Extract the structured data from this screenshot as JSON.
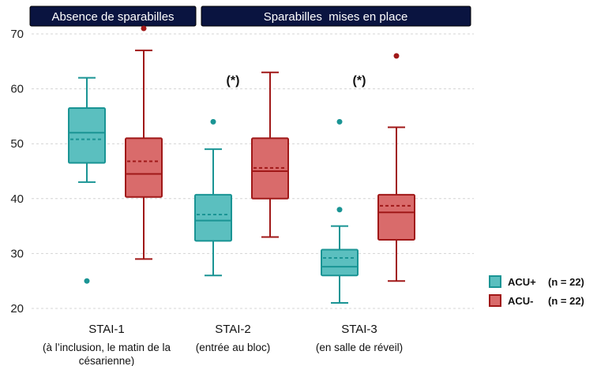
{
  "chart_data": {
    "type": "box",
    "banners": [
      {
        "text": "Absence de sparabilles"
      },
      {
        "text": "Sparabilles  mises en place"
      }
    ],
    "y_ticks": [
      20,
      30,
      40,
      50,
      60,
      70
    ],
    "ylim": [
      19,
      72
    ],
    "grid": "horizontal dashed",
    "categories": [
      {
        "label": "STAI-1",
        "sub": [
          "(à l’inclusion, le matin de la",
          "césarienne)"
        ]
      },
      {
        "label": "STAI-2",
        "sub": [
          "(entrée au bloc)"
        ]
      },
      {
        "label": "STAI-3",
        "sub": [
          "(en salle de réveil)"
        ]
      }
    ],
    "series": [
      {
        "name": "ACU+",
        "n": "(n = 22)",
        "fill": "#5bbfbf",
        "stroke": "#1a9494",
        "boxes": [
          {
            "min": 43,
            "q1": 46.5,
            "median": 52,
            "mean": 50.8,
            "q3": 56.5,
            "max": 62,
            "outliers": [
              25
            ]
          },
          {
            "min": 26,
            "q1": 32.3,
            "median": 36,
            "mean": 37.1,
            "q3": 40.7,
            "max": 49,
            "outliers": [
              54
            ]
          },
          {
            "min": 21,
            "q1": 26,
            "median": 27.6,
            "mean": 29.2,
            "q3": 30.7,
            "max": 35,
            "outliers": [
              38,
              54
            ]
          }
        ]
      },
      {
        "name": "ACU-",
        "n": "(n = 22)",
        "fill": "#d96b6b",
        "stroke": "#a01818",
        "boxes": [
          {
            "min": 29,
            "q1": 40.3,
            "median": 44.5,
            "mean": 46.8,
            "q3": 51,
            "max": 67,
            "outliers": [
              71
            ]
          },
          {
            "min": 33,
            "q1": 40,
            "median": 45,
            "mean": 45.6,
            "q3": 51,
            "max": 63,
            "outliers": []
          },
          {
            "min": 25,
            "q1": 32.5,
            "median": 37.5,
            "mean": 38.7,
            "q3": 40.7,
            "max": 53,
            "outliers": [
              66
            ]
          }
        ]
      }
    ],
    "annotations": [
      {
        "text": "(*)",
        "category": 1
      },
      {
        "text": "(*)",
        "category": 2
      }
    ],
    "legend": {
      "position": "bottom-right"
    }
  }
}
